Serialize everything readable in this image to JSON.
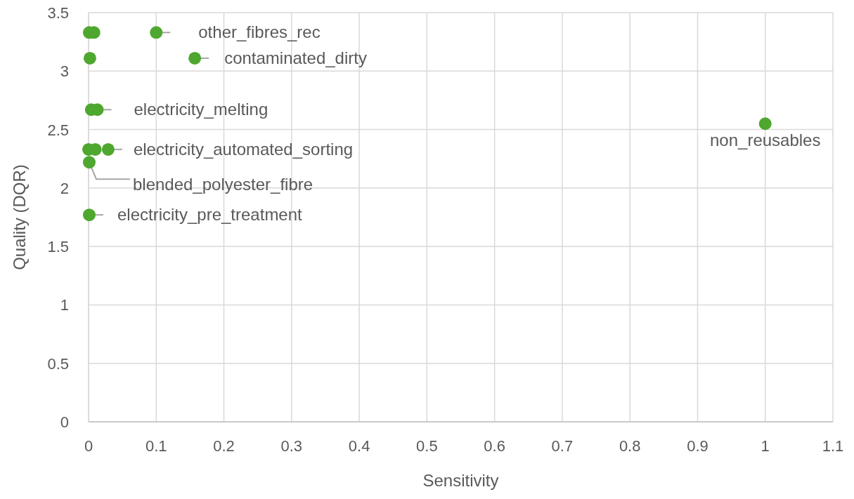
{
  "chart_data": {
    "type": "scatter",
    "xlabel": "Sensitivity",
    "ylabel": "Quality (DQR)",
    "series": [
      {
        "color": "#4ea72e",
        "x": [
          0.001,
          0.008,
          0.1,
          0.002,
          0.157,
          0.004,
          0.013,
          0.0,
          0.01,
          0.029,
          0.001,
          0.001,
          1.0
        ],
        "values": [
          3.33,
          3.33,
          3.33,
          3.11,
          3.11,
          2.67,
          2.67,
          2.33,
          2.33,
          2.33,
          2.22,
          1.77,
          2.55
        ]
      }
    ],
    "annotations": [
      {
        "text": "other_fibres_rec",
        "x": 0.1,
        "y": 3.33
      },
      {
        "text": "contaminated_dirty",
        "x": 0.157,
        "y": 3.11
      },
      {
        "text": "electricity_melting",
        "x": 0.013,
        "y": 2.67
      },
      {
        "text": "electricity_automated_sorting",
        "x": 0.029,
        "y": 2.33
      },
      {
        "text": "blended_polyester_fibre",
        "x": 0.001,
        "y": 2.22
      },
      {
        "text": "electricity_pre_treatment",
        "x": 0.001,
        "y": 1.77
      },
      {
        "text": "non_reusables",
        "x": 1.0,
        "y": 2.55
      }
    ],
    "xlim": [
      0,
      1.1
    ],
    "xticks": [
      0,
      0.1,
      0.2,
      0.3,
      0.4,
      0.5,
      0.6,
      0.7,
      0.8,
      0.9,
      1,
      1.1
    ],
    "ylim": [
      0,
      3.5
    ],
    "yticks": [
      0,
      0.5,
      1,
      1.5,
      2,
      2.5,
      3,
      3.5
    ],
    "grid": true,
    "marker": "circle"
  }
}
